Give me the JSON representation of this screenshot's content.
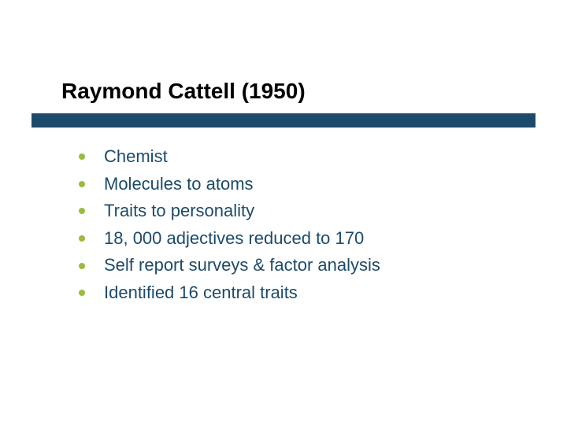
{
  "title": "Raymond Cattell (1950)",
  "title_color": "#000000",
  "title_fontsize": 28,
  "title_bar_color": "#1c4a6a",
  "bullet_color": "#9cbb3c",
  "text_color": "#1c4a6a",
  "body_fontsize": 22,
  "bullets": [
    "Chemist",
    "Molecules to atoms",
    "Traits to personality",
    "18, 000 adjectives reduced to 170",
    "Self report surveys & factor analysis",
    "Identified 16 central traits"
  ]
}
